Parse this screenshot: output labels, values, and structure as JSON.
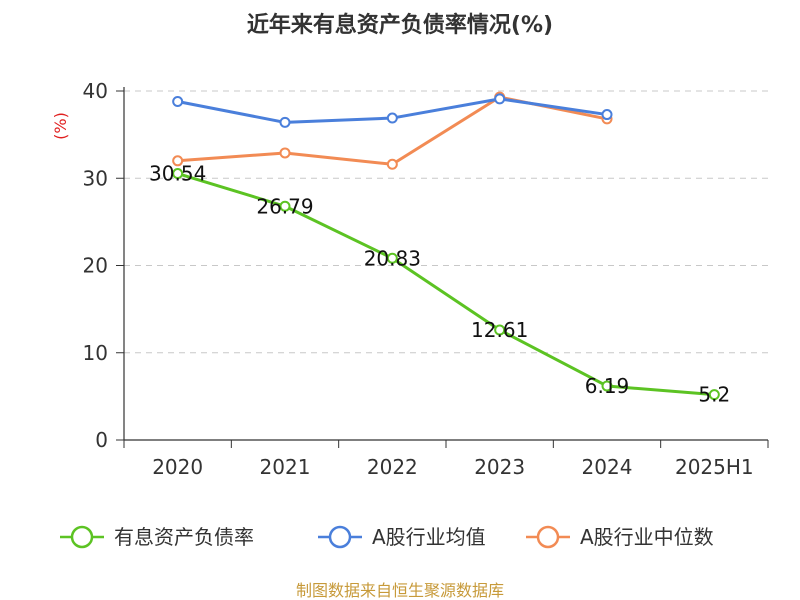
{
  "chart_data": {
    "type": "line",
    "title": "近年来有息资产负债率情况(%)",
    "ylabel": "(%)",
    "categories": [
      "2020",
      "2021",
      "2022",
      "2023",
      "2024",
      "2025H1"
    ],
    "ylim": [
      0,
      40
    ],
    "yticks": [
      0,
      10,
      20,
      30,
      40
    ],
    "grid": true,
    "legend_position": "bottom",
    "series": [
      {
        "name": "有息资产负债率",
        "color": "#5cc323",
        "values": [
          30.54,
          26.79,
          20.83,
          12.61,
          6.19,
          5.2
        ],
        "labels": [
          "30.54",
          "26.79",
          "20.83",
          "12.61",
          "6.19",
          "5.2"
        ]
      },
      {
        "name": "A股行业均值",
        "color": "#4a7fdb",
        "values": [
          38.8,
          36.4,
          36.9,
          39.1,
          37.3,
          null
        ]
      },
      {
        "name": "A股行业中位数",
        "color": "#f28b54",
        "values": [
          32.0,
          32.9,
          31.6,
          39.3,
          36.8,
          null
        ]
      }
    ],
    "source": "制图数据来自恒生聚源数据库"
  }
}
